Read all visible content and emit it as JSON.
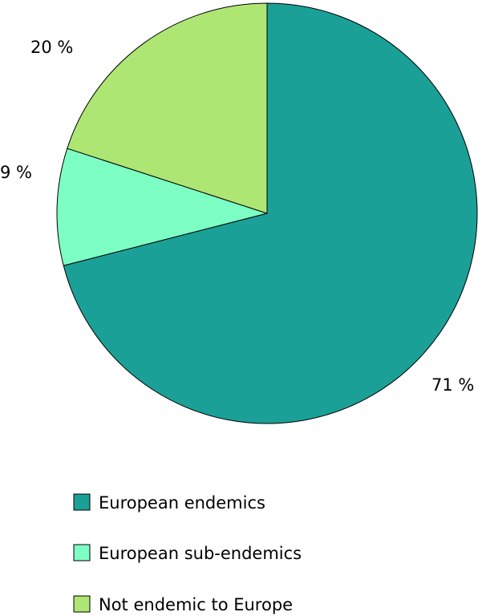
{
  "chart_data": {
    "type": "pie",
    "categories": [
      "European endemics",
      "European sub-endemics",
      "Not endemic to Europe"
    ],
    "values": [
      71,
      9,
      20
    ],
    "labels": [
      "71 %",
      "9 %",
      "20 %"
    ],
    "colors": [
      "#1ba098",
      "#7dffc4",
      "#aee673"
    ],
    "start_angle": "12 o'clock",
    "direction": "clockwise",
    "legend_position": "bottom-left"
  }
}
